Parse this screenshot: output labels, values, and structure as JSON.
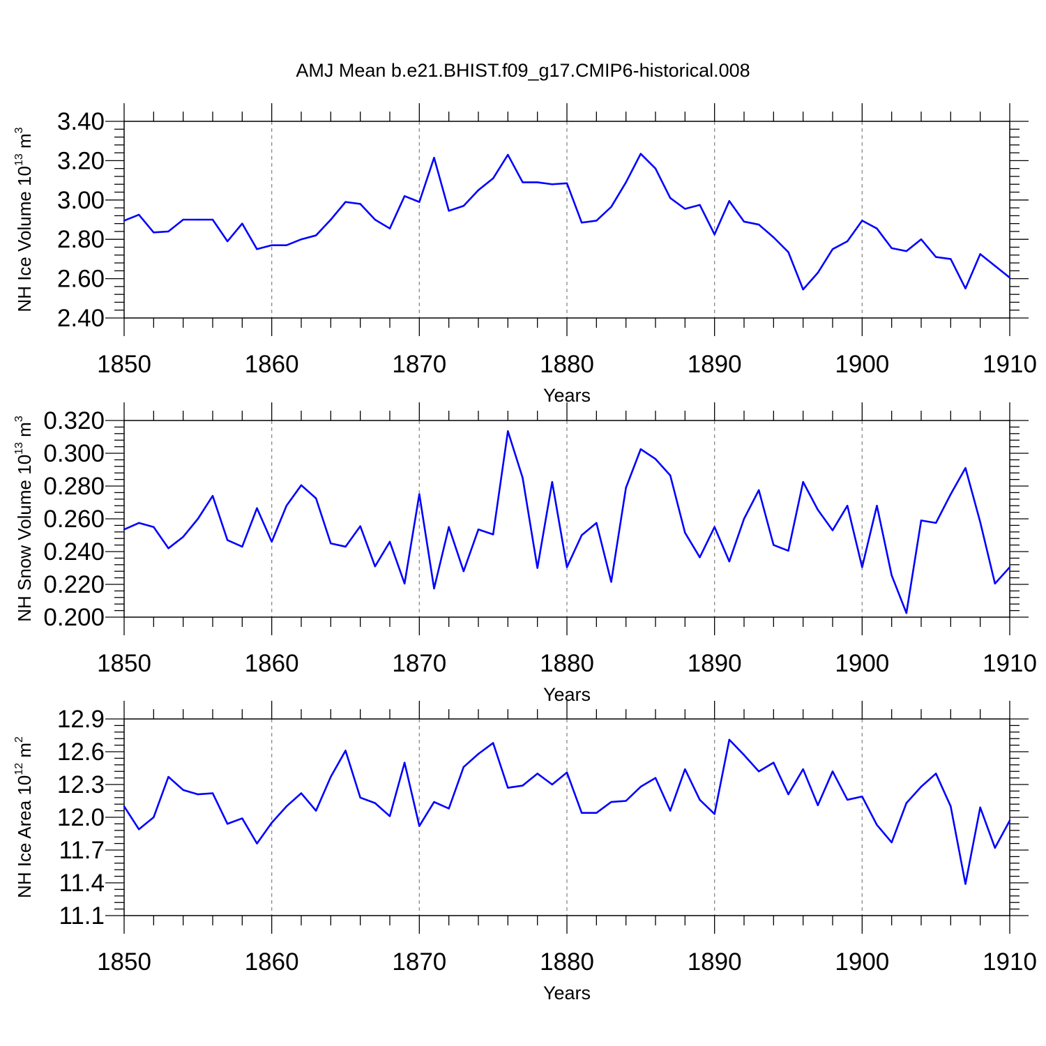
{
  "title": "AMJ Mean b.e21.BHIST.f09_g17.CMIP6-historical.008",
  "chart_data": [
    {
      "type": "line",
      "xlabel": "Years",
      "ylabel": "NH Ice Volume 10",
      "ylabel_exp": "13",
      "ylabel_unit": "m",
      "ylabel_unit_exp": "3",
      "xlim": [
        1850,
        1910
      ],
      "ylim": [
        2.4,
        3.4
      ],
      "xticks": [
        1850,
        1860,
        1870,
        1880,
        1890,
        1900,
        1910
      ],
      "yticks": [
        "2.40",
        "2.60",
        "2.80",
        "3.00",
        "3.20",
        "3.40"
      ],
      "line_color": "#0000ff",
      "grid": "dashed vertical at major x ticks",
      "x": [
        1850,
        1851,
        1852,
        1853,
        1854,
        1855,
        1856,
        1857,
        1858,
        1859,
        1860,
        1861,
        1862,
        1863,
        1864,
        1865,
        1866,
        1867,
        1868,
        1869,
        1870,
        1871,
        1872,
        1873,
        1874,
        1875,
        1876,
        1877,
        1878,
        1879,
        1880,
        1881,
        1882,
        1883,
        1884,
        1885,
        1886,
        1887,
        1888,
        1889,
        1890,
        1891,
        1892,
        1893,
        1894,
        1895,
        1896,
        1897,
        1898,
        1899,
        1900,
        1901,
        1902,
        1903,
        1904,
        1905,
        1906,
        1907,
        1908,
        1909,
        1910
      ],
      "y": [
        2.895,
        2.925,
        2.835,
        2.84,
        2.9,
        2.9,
        2.9,
        2.79,
        2.88,
        2.75,
        2.77,
        2.77,
        2.8,
        2.82,
        2.9,
        2.99,
        2.98,
        2.9,
        2.855,
        3.02,
        2.99,
        3.215,
        2.945,
        2.97,
        3.05,
        3.11,
        3.23,
        3.09,
        3.09,
        3.08,
        3.085,
        2.885,
        2.895,
        2.965,
        3.09,
        3.235,
        3.16,
        3.01,
        2.955,
        2.975,
        2.825,
        2.995,
        2.89,
        2.875,
        2.81,
        2.735,
        2.545,
        2.63,
        2.75,
        2.79,
        2.895,
        2.855,
        2.755,
        2.74,
        2.8,
        2.71,
        2.7,
        2.55,
        2.725,
        2.665,
        2.605
      ]
    },
    {
      "type": "line",
      "xlabel": "Years",
      "ylabel": "NH Snow Volume 10",
      "ylabel_exp": "13",
      "ylabel_unit": "m",
      "ylabel_unit_exp": "3",
      "xlim": [
        1850,
        1910
      ],
      "ylim": [
        0.2,
        0.32
      ],
      "xticks": [
        1850,
        1860,
        1870,
        1880,
        1890,
        1900,
        1910
      ],
      "yticks": [
        "0.200",
        "0.220",
        "0.240",
        "0.260",
        "0.280",
        "0.300",
        "0.320"
      ],
      "line_color": "#0000ff",
      "grid": "dashed vertical at major x ticks",
      "x": [
        1850,
        1851,
        1852,
        1853,
        1854,
        1855,
        1856,
        1857,
        1858,
        1859,
        1860,
        1861,
        1862,
        1863,
        1864,
        1865,
        1866,
        1867,
        1868,
        1869,
        1870,
        1871,
        1872,
        1873,
        1874,
        1875,
        1876,
        1877,
        1878,
        1879,
        1880,
        1881,
        1882,
        1883,
        1884,
        1885,
        1886,
        1887,
        1888,
        1889,
        1890,
        1891,
        1892,
        1893,
        1894,
        1895,
        1896,
        1897,
        1898,
        1899,
        1900,
        1901,
        1902,
        1903,
        1904,
        1905,
        1906,
        1907,
        1908,
        1909,
        1910
      ],
      "y": [
        0.2535,
        0.2575,
        0.255,
        0.242,
        0.249,
        0.26,
        0.274,
        0.247,
        0.243,
        0.2665,
        0.246,
        0.268,
        0.2805,
        0.2725,
        0.245,
        0.243,
        0.2555,
        0.231,
        0.246,
        0.2205,
        0.275,
        0.2175,
        0.255,
        0.228,
        0.2535,
        0.2505,
        0.3135,
        0.285,
        0.23,
        0.2825,
        0.2305,
        0.25,
        0.2575,
        0.2215,
        0.279,
        0.3025,
        0.2965,
        0.2865,
        0.2515,
        0.2365,
        0.255,
        0.234,
        0.26,
        0.2775,
        0.244,
        0.2405,
        0.2825,
        0.2655,
        0.253,
        0.268,
        0.2305,
        0.268,
        0.2255,
        0.2025,
        0.259,
        0.2575,
        0.275,
        0.291,
        0.258,
        0.2205,
        0.2305
      ]
    },
    {
      "type": "line",
      "xlabel": "Years",
      "ylabel": "NH Ice Area 10",
      "ylabel_exp": "12",
      "ylabel_unit": "m",
      "ylabel_unit_exp": "2",
      "xlim": [
        1850,
        1910
      ],
      "ylim": [
        11.1,
        12.9
      ],
      "xticks": [
        1850,
        1860,
        1870,
        1880,
        1890,
        1900,
        1910
      ],
      "yticks": [
        "11.1",
        "11.4",
        "11.7",
        "12.0",
        "12.3",
        "12.6",
        "12.9"
      ],
      "line_color": "#0000ff",
      "grid": "dashed vertical at major x ticks",
      "x": [
        1850,
        1851,
        1852,
        1853,
        1854,
        1855,
        1856,
        1857,
        1858,
        1859,
        1860,
        1861,
        1862,
        1863,
        1864,
        1865,
        1866,
        1867,
        1868,
        1869,
        1870,
        1871,
        1872,
        1873,
        1874,
        1875,
        1876,
        1877,
        1878,
        1879,
        1880,
        1881,
        1882,
        1883,
        1884,
        1885,
        1886,
        1887,
        1888,
        1889,
        1890,
        1891,
        1892,
        1893,
        1894,
        1895,
        1896,
        1897,
        1898,
        1899,
        1900,
        1901,
        1902,
        1903,
        1904,
        1905,
        1906,
        1907,
        1908,
        1909,
        1910
      ],
      "y": [
        12.1,
        11.89,
        12.0,
        12.37,
        12.25,
        12.21,
        12.22,
        11.94,
        11.99,
        11.76,
        11.95,
        12.1,
        12.22,
        12.06,
        12.37,
        12.61,
        12.18,
        12.13,
        12.01,
        12.5,
        11.92,
        12.14,
        12.08,
        12.46,
        12.58,
        12.68,
        12.27,
        12.29,
        12.4,
        12.3,
        12.41,
        12.04,
        12.04,
        12.14,
        12.15,
        12.28,
        12.36,
        12.06,
        12.44,
        12.16,
        12.03,
        12.71,
        12.57,
        12.42,
        12.5,
        12.21,
        12.44,
        12.11,
        12.42,
        12.16,
        12.19,
        11.93,
        11.77,
        12.13,
        12.28,
        12.4,
        12.1,
        11.39,
        12.09,
        11.72,
        11.97
      ]
    }
  ]
}
